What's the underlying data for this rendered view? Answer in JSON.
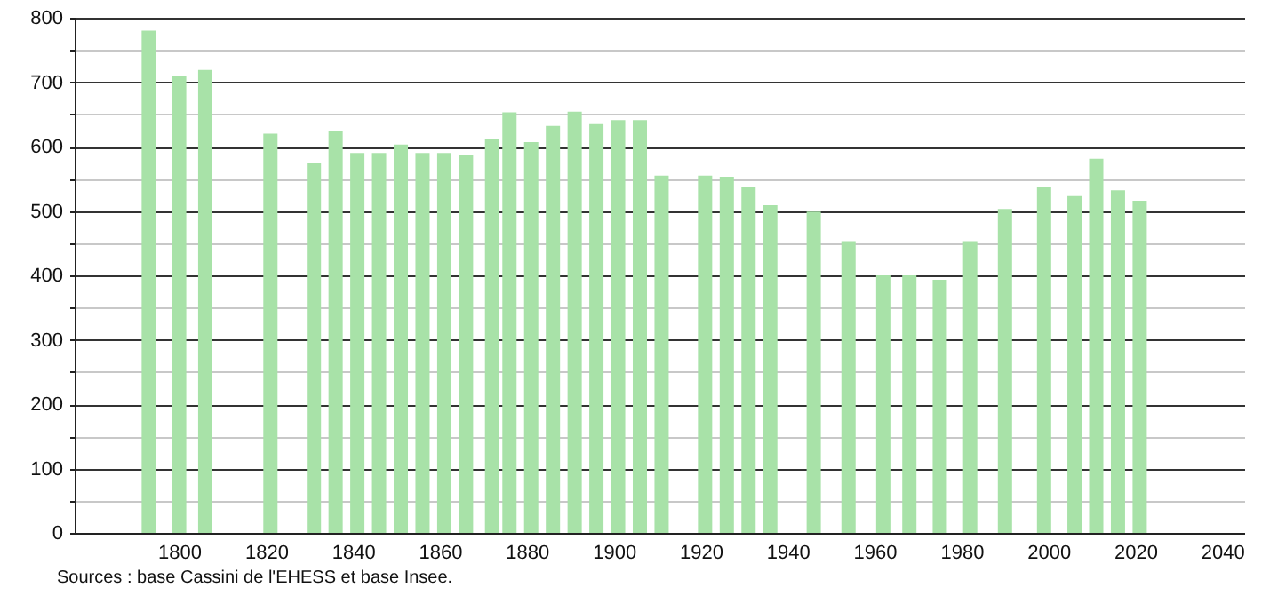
{
  "chart_data": {
    "type": "bar",
    "annotations": [
      "Sources : base Cassini de l'EHESS et base Insee."
    ],
    "x": [
      1793,
      1800,
      1806,
      1821,
      1831,
      1836,
      1841,
      1846,
      1851,
      1856,
      1861,
      1866,
      1872,
      1876,
      1881,
      1886,
      1891,
      1896,
      1901,
      1906,
      1911,
      1921,
      1926,
      1931,
      1936,
      1946,
      1954,
      1962,
      1968,
      1975,
      1982,
      1990,
      1999,
      2006,
      2011,
      2016,
      2021
    ],
    "values": [
      780,
      710,
      719,
      620,
      575,
      624,
      590,
      590,
      603,
      590,
      590,
      587,
      612,
      653,
      607,
      632,
      654,
      635,
      641,
      641,
      555,
      555,
      553,
      538,
      509,
      499,
      453,
      400,
      400,
      393,
      453,
      503,
      538,
      523,
      581,
      532,
      516
    ],
    "color": "#a8e2a8",
    "xlim": [
      1778,
      2043
    ],
    "xticks": [
      1800,
      1820,
      1840,
      1860,
      1880,
      1900,
      1920,
      1940,
      1960,
      1980,
      2000,
      2020,
      2040
    ],
    "ylim": [
      0,
      800
    ],
    "yticks": [
      0,
      {
        "value": 50,
        "label": null
      },
      100,
      {
        "value": 150,
        "label": null
      },
      200,
      {
        "value": 250,
        "label": null
      },
      300,
      {
        "value": 350,
        "label": null
      },
      400,
      {
        "value": 450,
        "label": null
      },
      500,
      {
        "value": 550,
        "label": null
      },
      600,
      {
        "value": 650,
        "label": null
      },
      700,
      {
        "value": 750,
        "label": null
      },
      800
    ],
    "grid": "y"
  }
}
